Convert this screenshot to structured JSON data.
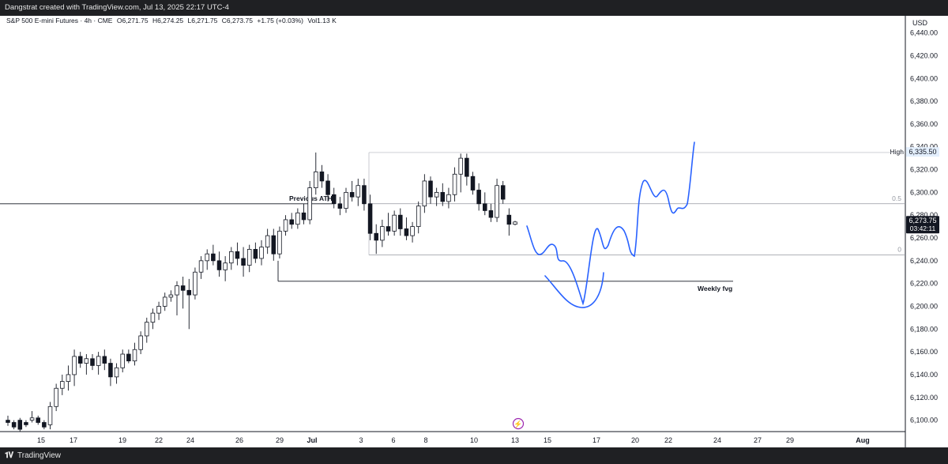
{
  "header": {
    "text": "Dangstrat created with TradingView.com, Jul 13, 2025 22:17 UTC-4"
  },
  "footer": {
    "brand": "TradingView",
    "logo": "tradingview-logo-icon"
  },
  "legend": {
    "symbol": "S&P 500 E-mini Futures · 4h · CME",
    "open": "O6,271.75",
    "high": "H6,274.25",
    "low": "L6,271.75",
    "close": "C6,273.75",
    "change": "+1.75 (+0.03%)",
    "volume": "Vol1.13 K"
  },
  "colors": {
    "candle": "#131722",
    "drawing": "#2962ff",
    "text": "#131722",
    "grid": "#e0e3eb",
    "alert": "#9c27b0"
  },
  "chart_data": {
    "type": "candlestick",
    "currency": "USD",
    "ylim": [
      6090,
      6455
    ],
    "y_ticks": [
      6100,
      6120,
      6140,
      6160,
      6180,
      6200,
      6220,
      6240,
      6260,
      6280,
      6300,
      6320,
      6340,
      6360,
      6380,
      6400,
      6420,
      6440
    ],
    "x_ticks": [
      "15",
      "17",
      "19",
      "22",
      "24",
      "26",
      "29",
      "Jul",
      "3",
      "6",
      "8",
      "10",
      "13",
      "15",
      "17",
      "20",
      "22",
      "24",
      "27",
      "29",
      "Aug"
    ],
    "last_price": "6,273.75",
    "countdown": "03:42:11",
    "high_label": "High",
    "high_value": "6,335.50",
    "levels": [
      {
        "label": "Previous ATH",
        "price": 6290
      },
      {
        "label": "Weekly fvg",
        "price": 6222
      },
      {
        "label": "0.5",
        "price": 6290
      },
      {
        "label": "0",
        "price": 6245
      },
      {
        "label": "",
        "price": 6335
      }
    ],
    "candles": [
      [
        6100,
        6104,
        6095,
        6098
      ],
      [
        6098,
        6100,
        6092,
        6094
      ],
      [
        6100,
        6102,
        6090,
        6092
      ],
      [
        6098,
        6100,
        6094,
        6096
      ],
      [
        6100,
        6108,
        6098,
        6102
      ],
      [
        6102,
        6104,
        6096,
        6098
      ],
      [
        6098,
        6100,
        6092,
        6094
      ],
      [
        6096,
        6116,
        6092,
        6112
      ],
      [
        6112,
        6132,
        6108,
        6128
      ],
      [
        6128,
        6140,
        6122,
        6134
      ],
      [
        6134,
        6148,
        6126,
        6140
      ],
      [
        6140,
        6162,
        6130,
        6156
      ],
      [
        6156,
        6160,
        6146,
        6150
      ],
      [
        6150,
        6158,
        6140,
        6154
      ],
      [
        6154,
        6158,
        6144,
        6148
      ],
      [
        6148,
        6160,
        6140,
        6156
      ],
      [
        6156,
        6162,
        6144,
        6150
      ],
      [
        6150,
        6154,
        6130,
        6138
      ],
      [
        6138,
        6150,
        6132,
        6146
      ],
      [
        6146,
        6162,
        6142,
        6158
      ],
      [
        6158,
        6162,
        6150,
        6152
      ],
      [
        6152,
        6168,
        6148,
        6162
      ],
      [
        6162,
        6178,
        6158,
        6174
      ],
      [
        6174,
        6190,
        6168,
        6186
      ],
      [
        6186,
        6198,
        6180,
        6194
      ],
      [
        6194,
        6204,
        6188,
        6200
      ],
      [
        6200,
        6212,
        6196,
        6208
      ],
      [
        6208,
        6214,
        6204,
        6210
      ],
      [
        6210,
        6222,
        6192,
        6218
      ],
      [
        6218,
        6226,
        6198,
        6214
      ],
      [
        6214,
        6224,
        6180,
        6210
      ],
      [
        6210,
        6234,
        6206,
        6230
      ],
      [
        6230,
        6244,
        6224,
        6240
      ],
      [
        6240,
        6250,
        6232,
        6246
      ],
      [
        6246,
        6254,
        6236,
        6240
      ],
      [
        6240,
        6248,
        6226,
        6232
      ],
      [
        6232,
        6244,
        6222,
        6238
      ],
      [
        6238,
        6252,
        6232,
        6248
      ],
      [
        6248,
        6256,
        6236,
        6242
      ],
      [
        6242,
        6252,
        6226,
        6236
      ],
      [
        6236,
        6254,
        6230,
        6250
      ],
      [
        6250,
        6256,
        6238,
        6242
      ],
      [
        6242,
        6258,
        6236,
        6252
      ],
      [
        6252,
        6268,
        6246,
        6262
      ],
      [
        6262,
        6268,
        6240,
        6246
      ],
      [
        6246,
        6270,
        6242,
        6266
      ],
      [
        6266,
        6280,
        6262,
        6276
      ],
      [
        6276,
        6282,
        6268,
        6272
      ],
      [
        6272,
        6286,
        6268,
        6282
      ],
      [
        6282,
        6290,
        6272,
        6276
      ],
      [
        6276,
        6310,
        6272,
        6304
      ],
      [
        6304,
        6335,
        6298,
        6318
      ],
      [
        6318,
        6324,
        6304,
        6310
      ],
      [
        6310,
        6316,
        6292,
        6298
      ],
      [
        6298,
        6304,
        6286,
        6290
      ],
      [
        6290,
        6296,
        6280,
        6286
      ],
      [
        6286,
        6304,
        6282,
        6300
      ],
      [
        6300,
        6310,
        6292,
        6296
      ],
      [
        6296,
        6312,
        6288,
        6306
      ],
      [
        6306,
        6312,
        6284,
        6290
      ],
      [
        6290,
        6298,
        6258,
        6264
      ],
      [
        6264,
        6272,
        6246,
        6258
      ],
      [
        6258,
        6276,
        6252,
        6270
      ],
      [
        6270,
        6282,
        6262,
        6266
      ],
      [
        6266,
        6284,
        6262,
        6280
      ],
      [
        6280,
        6286,
        6262,
        6268
      ],
      [
        6268,
        6278,
        6258,
        6262
      ],
      [
        6262,
        6274,
        6256,
        6270
      ],
      [
        6270,
        6292,
        6264,
        6288
      ],
      [
        6288,
        6316,
        6282,
        6310
      ],
      [
        6310,
        6314,
        6290,
        6296
      ],
      [
        6296,
        6304,
        6288,
        6300
      ],
      [
        6300,
        6308,
        6288,
        6292
      ],
      [
        6292,
        6304,
        6286,
        6298
      ],
      [
        6298,
        6322,
        6292,
        6316
      ],
      [
        6316,
        6334,
        6300,
        6330
      ],
      [
        6330,
        6334,
        6306,
        6314
      ],
      [
        6314,
        6318,
        6298,
        6302
      ],
      [
        6302,
        6308,
        6284,
        6290
      ],
      [
        6290,
        6300,
        6280,
        6284
      ],
      [
        6284,
        6290,
        6274,
        6278
      ],
      [
        6278,
        6312,
        6274,
        6306
      ],
      [
        6306,
        6310,
        6290,
        6294
      ],
      [
        6280,
        6286,
        6262,
        6272
      ],
      [
        6272,
        6275,
        6271,
        6274
      ]
    ]
  }
}
